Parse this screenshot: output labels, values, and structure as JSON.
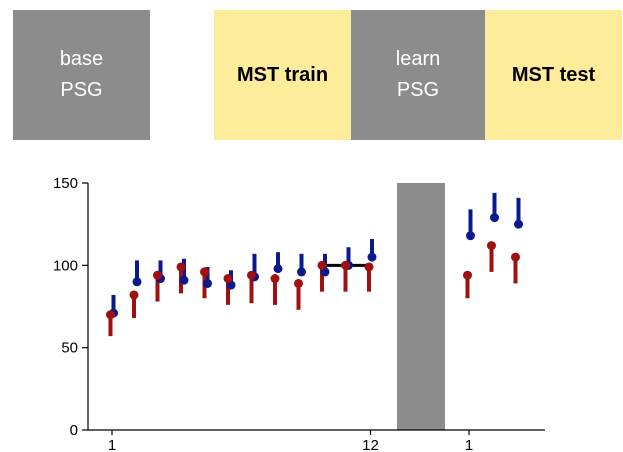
{
  "protocol": [
    {
      "lines": [
        "base",
        "PSG"
      ],
      "style": "gray"
    },
    {
      "lines": [
        "MST train"
      ],
      "style": "yellow"
    },
    {
      "lines": [
        "learn",
        "PSG"
      ],
      "style": "gray"
    },
    {
      "lines": [
        "MST test"
      ],
      "style": "yellow"
    }
  ],
  "colors": {
    "gray_block": "#8c8c8c",
    "yellow_block": "#fdec9a",
    "series_blue": "#0a1a8c",
    "series_red": "#a01010"
  },
  "chart_data": {
    "type": "scatter",
    "title": "",
    "xlabel": "",
    "ylabel": "",
    "ylim": [
      0,
      150
    ],
    "yticks": [
      0,
      50,
      100,
      150
    ],
    "xticks": [
      {
        "label": "1",
        "at": 1,
        "segment": "train"
      },
      {
        "label": "12",
        "at": 12,
        "segment": "train"
      },
      {
        "label": "1",
        "at": 1,
        "segment": "test"
      }
    ],
    "gray_band": true,
    "grid": false,
    "series": [
      {
        "color": "#0a1a8c",
        "train": [
          {
            "x": 1,
            "y": 71,
            "upper": 82
          },
          {
            "x": 2,
            "y": 90,
            "upper": 103
          },
          {
            "x": 3,
            "y": 92,
            "upper": 103
          },
          {
            "x": 4,
            "y": 91,
            "upper": 104
          },
          {
            "x": 5,
            "y": 89,
            "upper": 99
          },
          {
            "x": 6,
            "y": 88,
            "upper": 97
          },
          {
            "x": 7,
            "y": 93,
            "upper": 107
          },
          {
            "x": 8,
            "y": 98,
            "upper": 108
          },
          {
            "x": 9,
            "y": 96,
            "upper": 107
          },
          {
            "x": 10,
            "y": 96,
            "upper": 107
          },
          {
            "x": 11,
            "y": 100,
            "upper": 111
          },
          {
            "x": 12,
            "y": 105,
            "upper": 116
          }
        ],
        "test": [
          {
            "x": 1,
            "y": 118,
            "upper": 134
          },
          {
            "x": 2,
            "y": 129,
            "upper": 144
          },
          {
            "x": 3,
            "y": 125,
            "upper": 141
          }
        ]
      },
      {
        "color": "#a01010",
        "train": [
          {
            "x": 1,
            "y": 70,
            "lower": 57
          },
          {
            "x": 2,
            "y": 82,
            "lower": 68
          },
          {
            "x": 3,
            "y": 94,
            "lower": 78
          },
          {
            "x": 4,
            "y": 99,
            "lower": 83
          },
          {
            "x": 5,
            "y": 96,
            "lower": 80
          },
          {
            "x": 6,
            "y": 92,
            "lower": 76
          },
          {
            "x": 7,
            "y": 94,
            "lower": 77
          },
          {
            "x": 8,
            "y": 92,
            "lower": 76
          },
          {
            "x": 9,
            "y": 89,
            "lower": 73
          },
          {
            "x": 10,
            "y": 100,
            "lower": 84
          },
          {
            "x": 11,
            "y": 100,
            "lower": 84
          },
          {
            "x": 12,
            "y": 99,
            "lower": 84
          }
        ],
        "test": [
          {
            "x": 1,
            "y": 94,
            "lower": 80
          },
          {
            "x": 2,
            "y": 112,
            "lower": 96
          },
          {
            "x": 3,
            "y": 105,
            "lower": 89
          }
        ]
      }
    ],
    "reference_line": {
      "y": 100,
      "from_x": 10,
      "to_x": 12,
      "color": "#000000"
    }
  }
}
